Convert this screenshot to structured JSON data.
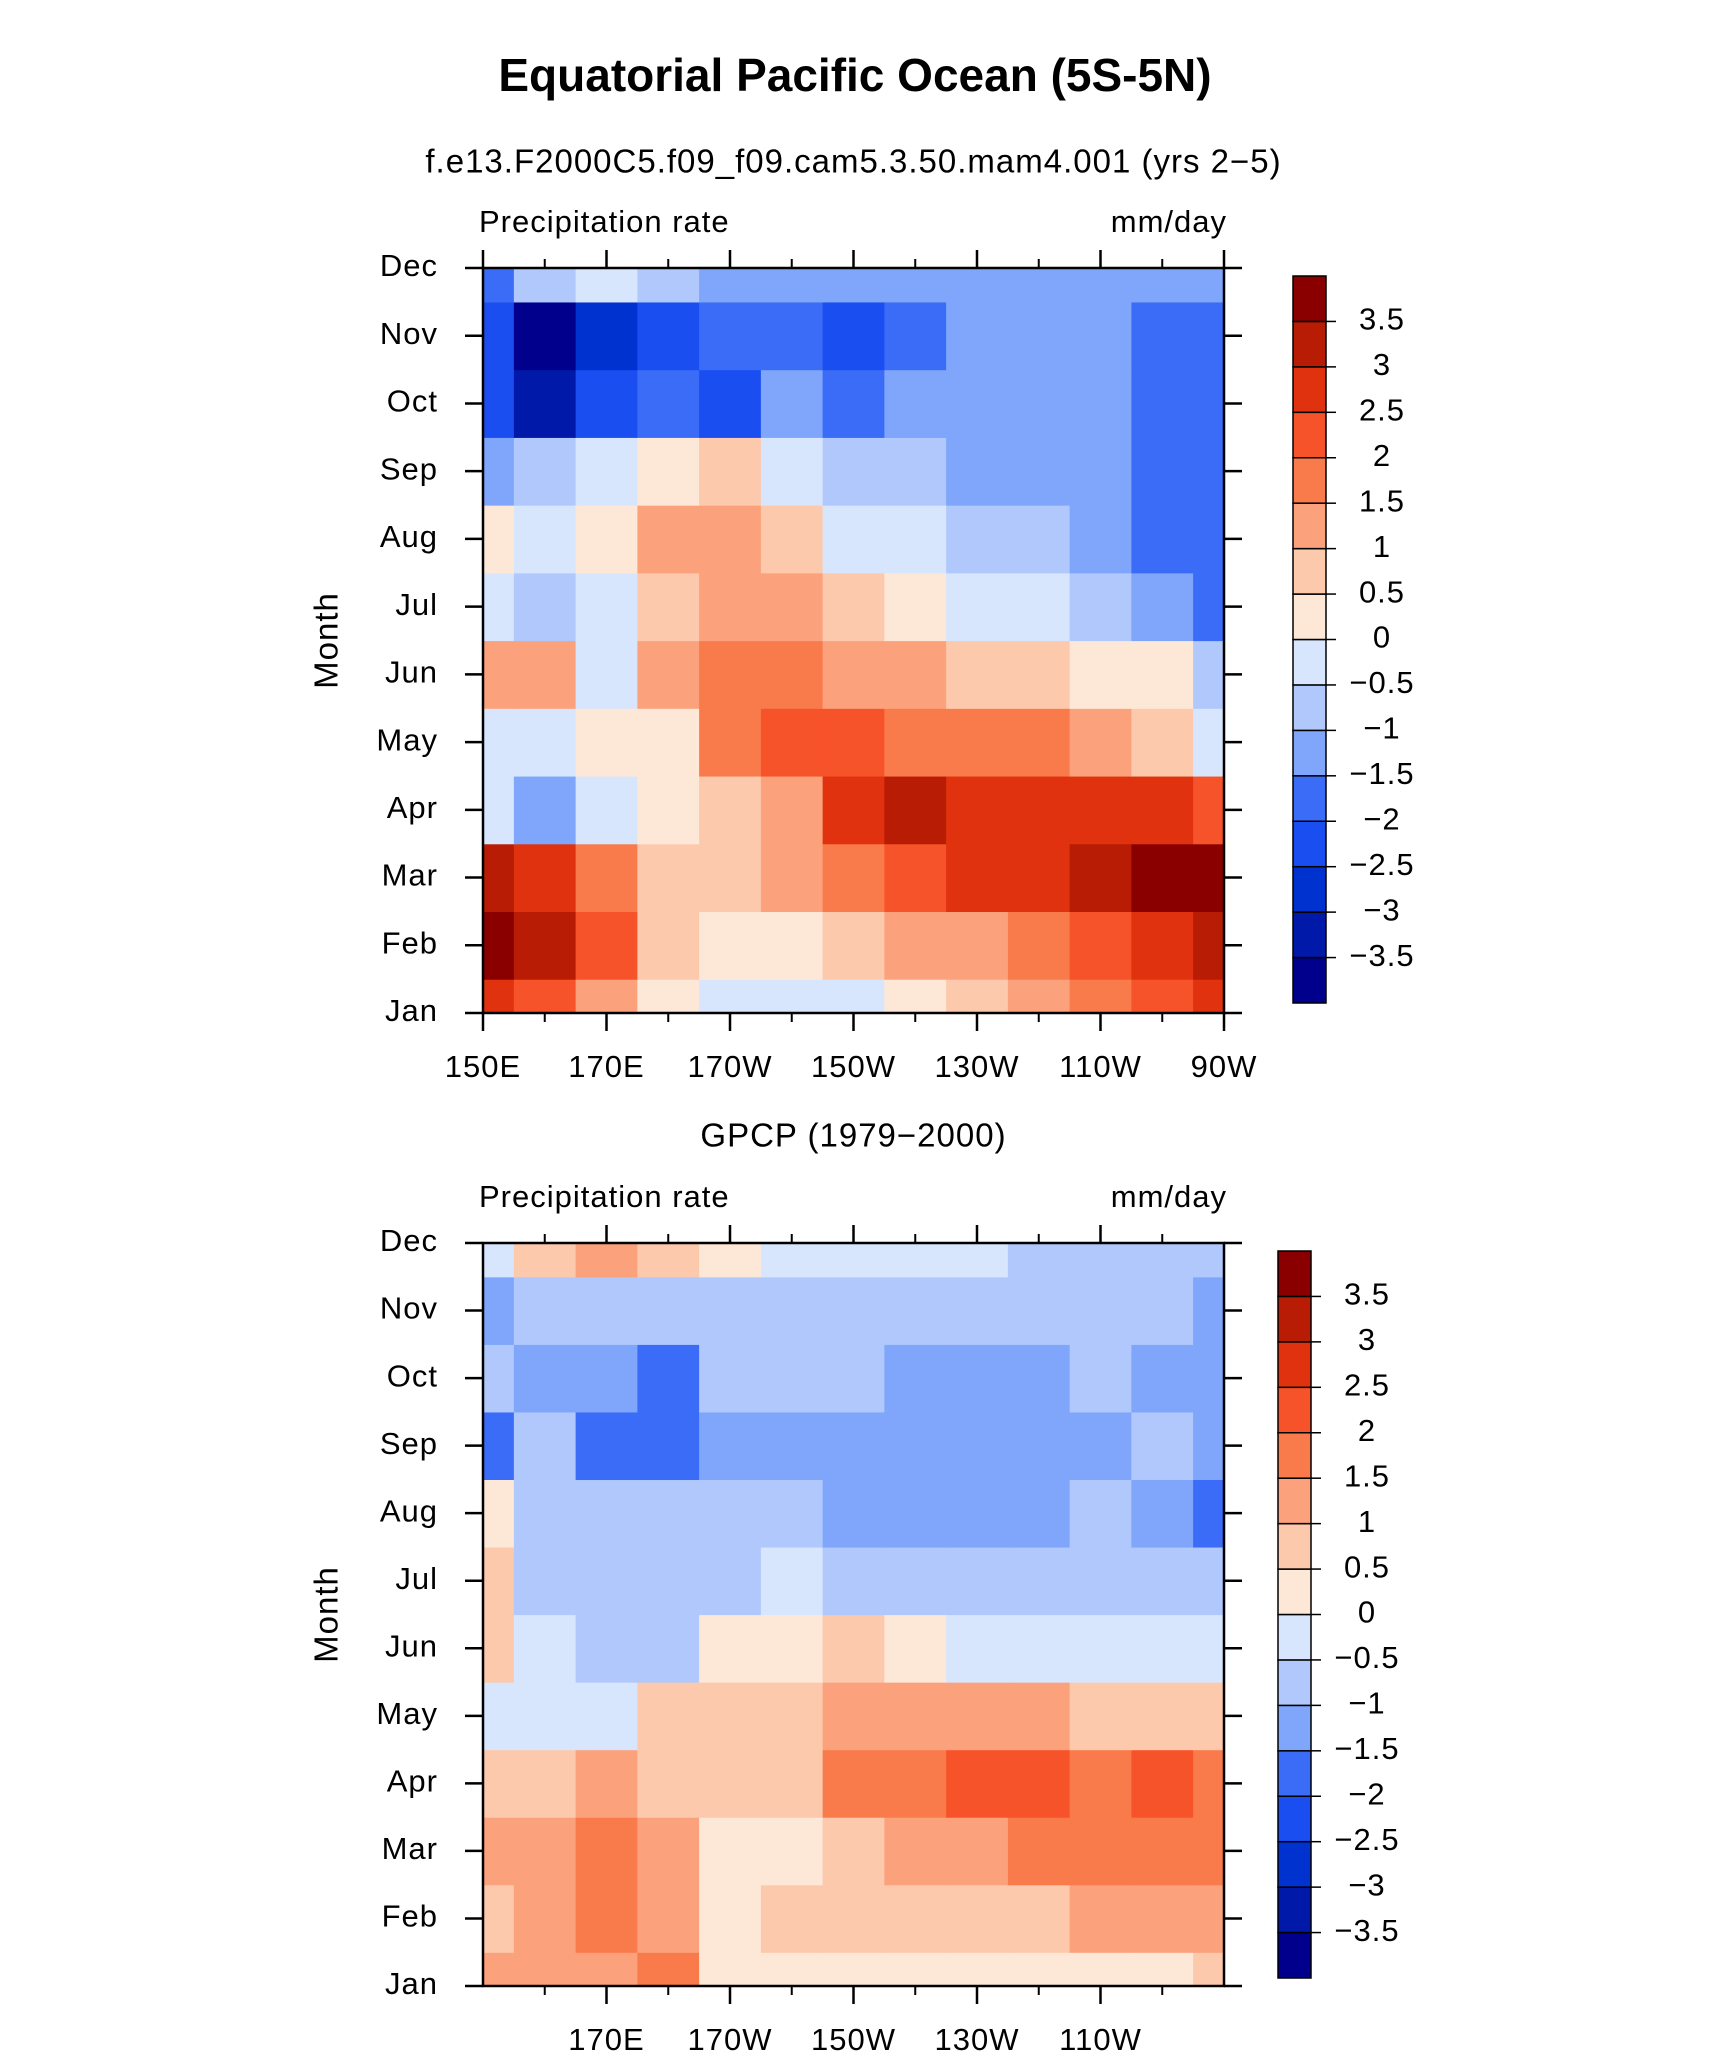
{
  "title": "Equatorial Pacific Ocean (5S-5N)",
  "chart_data": [
    {
      "type": "heatmap",
      "title": "f.e13.F2000C5.f09_f09.cam5.3.50.mam4.001 (yrs 2−5)",
      "left_label": "Precipitation rate",
      "right_label": "mm/day",
      "ylabel": "Month",
      "x": [
        150,
        160,
        170,
        180,
        190,
        200,
        210,
        220,
        230,
        240,
        250,
        260,
        270
      ],
      "xlim": [
        150,
        270
      ],
      "xticks": [
        {
          "value": 150,
          "label": "150E"
        },
        {
          "value": 170,
          "label": "170E"
        },
        {
          "value": 190,
          "label": "170W"
        },
        {
          "value": 210,
          "label": "150W"
        },
        {
          "value": 230,
          "label": "130W"
        },
        {
          "value": 250,
          "label": "110W"
        },
        {
          "value": 270,
          "label": "90W"
        }
      ],
      "xminorticks": [
        160,
        180,
        200,
        220,
        240,
        260
      ],
      "ylim": [
        0,
        11
      ],
      "yticks": [
        {
          "value": 0,
          "label": "Jan"
        },
        {
          "value": 1,
          "label": "Feb"
        },
        {
          "value": 2,
          "label": "Mar"
        },
        {
          "value": 3,
          "label": "Apr"
        },
        {
          "value": 4,
          "label": "May"
        },
        {
          "value": 5,
          "label": "Jun"
        },
        {
          "value": 6,
          "label": "Jul"
        },
        {
          "value": 7,
          "label": "Aug"
        },
        {
          "value": 8,
          "label": "Sep"
        },
        {
          "value": 9,
          "label": "Oct"
        },
        {
          "value": 10,
          "label": "Nov"
        },
        {
          "value": 11,
          "label": "Dec"
        }
      ],
      "values": [
        [
          2.5,
          2.0,
          1.0,
          0.3,
          -0.3,
          -0.3,
          -0.2,
          0.2,
          0.7,
          1.0,
          1.5,
          2.0,
          2.5
        ],
        [
          3.7,
          3.2,
          2.0,
          0.5,
          0.2,
          0.3,
          0.6,
          1.0,
          1.3,
          1.7,
          2.2,
          2.8,
          3.3
        ],
        [
          3.0,
          2.5,
          1.7,
          0.7,
          0.7,
          1.2,
          1.7,
          2.2,
          2.5,
          2.8,
          3.0,
          3.6,
          3.8
        ],
        [
          -0.3,
          -1.2,
          -0.3,
          0.3,
          0.8,
          1.3,
          2.7,
          3.1,
          2.8,
          2.7,
          2.7,
          2.5,
          2.3
        ],
        [
          -0.4,
          -0.3,
          0.2,
          0.3,
          1.5,
          2.2,
          2.0,
          1.9,
          1.7,
          1.6,
          1.3,
          0.8,
          -0.2
        ],
        [
          1.2,
          1.0,
          -0.2,
          1.0,
          1.5,
          1.6,
          1.4,
          1.0,
          0.7,
          0.5,
          0.2,
          0.1,
          -0.6
        ],
        [
          -0.5,
          -0.7,
          -0.4,
          0.5,
          1.2,
          1.1,
          0.5,
          0.1,
          -0.2,
          -0.4,
          -0.7,
          -1.2,
          -1.6
        ],
        [
          0.1,
          -0.3,
          0.2,
          1.0,
          1.3,
          0.5,
          -0.2,
          -0.5,
          -0.7,
          -0.9,
          -1.2,
          -1.7,
          -1.9
        ],
        [
          -1.3,
          -0.7,
          -0.3,
          0.3,
          0.6,
          -0.3,
          -0.8,
          -1.0,
          -1.1,
          -1.2,
          -1.4,
          -1.8,
          -2.0
        ],
        [
          -2.2,
          -3.2,
          -2.3,
          -2.0,
          -2.2,
          -1.5,
          -1.7,
          -1.2,
          -1.2,
          -1.2,
          -1.3,
          -1.7,
          -2.0
        ],
        [
          -2.5,
          -3.6,
          -2.6,
          -2.2,
          -2.0,
          -1.8,
          -2.1,
          -1.7,
          -1.2,
          -1.2,
          -1.3,
          -1.7,
          -1.6
        ],
        [
          -1.6,
          -0.8,
          -0.4,
          -1.0,
          -1.2,
          -1.4,
          -1.3,
          -1.4,
          -1.2,
          -1.2,
          -1.1,
          -1.3,
          -1.4
        ]
      ],
      "levels": [
        {
          "value": -3.5,
          "label": "−3.5"
        },
        {
          "value": -3,
          "label": "−3"
        },
        {
          "value": -2.5,
          "label": "−2.5"
        },
        {
          "value": -2,
          "label": "−2"
        },
        {
          "value": -1.5,
          "label": "−1.5"
        },
        {
          "value": -1,
          "label": "−1"
        },
        {
          "value": -0.5,
          "label": "−0.5"
        },
        0,
        0.5,
        1,
        1.5,
        2,
        2.5,
        3,
        3.5
      ],
      "colors": [
        "#00008c",
        "#0019a8",
        "#0032d0",
        "#1a4ef0",
        "#3a6cf7",
        "#7fa6fa",
        "#b0c8fb",
        "#d8e6fd",
        "#fde8d8",
        "#fcc9ad",
        "#fba27c",
        "#f97b4c",
        "#f7532a",
        "#e0320e",
        "#b81c04",
        "#8a0000"
      ]
    },
    {
      "type": "heatmap",
      "title": "GPCP (1979−2000)",
      "left_label": "Precipitation rate",
      "right_label": "mm/day",
      "ylabel": "Month",
      "x": [
        150,
        160,
        170,
        180,
        190,
        200,
        210,
        220,
        230,
        240,
        250,
        260,
        270
      ],
      "xlim": [
        150,
        270
      ],
      "xticks": [
        {
          "value": 170,
          "label": "170E"
        },
        {
          "value": 190,
          "label": "170W"
        },
        {
          "value": 210,
          "label": "150W"
        },
        {
          "value": 230,
          "label": "130W"
        },
        {
          "value": 250,
          "label": "110W"
        }
      ],
      "xminorticks": [
        160,
        180,
        200,
        220,
        240,
        260
      ],
      "ylim": [
        0,
        11
      ],
      "yticks": [
        {
          "value": 0,
          "label": "Jan"
        },
        {
          "value": 1,
          "label": "Feb"
        },
        {
          "value": 2,
          "label": "Mar"
        },
        {
          "value": 3,
          "label": "Apr"
        },
        {
          "value": 4,
          "label": "May"
        },
        {
          "value": 5,
          "label": "Jun"
        },
        {
          "value": 6,
          "label": "Jul"
        },
        {
          "value": 7,
          "label": "Aug"
        },
        {
          "value": 8,
          "label": "Sep"
        },
        {
          "value": 9,
          "label": "Oct"
        },
        {
          "value": 10,
          "label": "Nov"
        },
        {
          "value": 11,
          "label": "Dec"
        }
      ],
      "values": [
        [
          1.0,
          1.1,
          1.3,
          1.8,
          0.4,
          0.3,
          0.2,
          0.2,
          0.2,
          0.1,
          0.2,
          0.3,
          0.5
        ],
        [
          0.8,
          1.2,
          1.7,
          1.3,
          0.4,
          0.5,
          0.6,
          0.6,
          0.7,
          0.8,
          1.0,
          1.2,
          1.2
        ],
        [
          1.3,
          1.1,
          1.6,
          1.2,
          0.3,
          0.4,
          0.8,
          1.2,
          1.4,
          1.5,
          1.7,
          1.8,
          1.5
        ],
        [
          0.6,
          0.8,
          1.0,
          0.6,
          0.6,
          0.9,
          1.5,
          1.6,
          2.0,
          2.0,
          1.6,
          2.0,
          1.5
        ],
        [
          -0.2,
          -0.5,
          -0.3,
          0.6,
          0.7,
          0.9,
          1.2,
          1.0,
          1.0,
          1.0,
          0.9,
          0.8,
          0.7
        ],
        [
          0.6,
          -0.4,
          -0.6,
          -0.7,
          0.2,
          0.4,
          0.6,
          0.3,
          -0.2,
          -0.4,
          -0.3,
          -0.3,
          -0.2
        ],
        [
          0.6,
          -0.6,
          -0.7,
          -0.8,
          -0.6,
          -0.5,
          -0.6,
          -0.7,
          -0.8,
          -0.8,
          -0.6,
          -0.8,
          -1.0
        ],
        [
          0.2,
          -0.8,
          -0.9,
          -1.0,
          -0.9,
          -0.9,
          -1.2,
          -1.4,
          -1.5,
          -1.3,
          -1.0,
          -1.4,
          -1.6
        ],
        [
          -1.6,
          -1.0,
          -1.8,
          -1.7,
          -1.2,
          -1.1,
          -1.5,
          -1.4,
          -1.5,
          -1.4,
          -1.3,
          -1.0,
          -1.5
        ],
        [
          -1.0,
          -1.1,
          -1.4,
          -2.0,
          -1.0,
          -1.0,
          -1.0,
          -1.3,
          -1.3,
          -1.1,
          -1.0,
          -1.2,
          -1.5
        ],
        [
          -1.1,
          -0.9,
          -0.7,
          -0.8,
          -0.8,
          -0.6,
          -0.6,
          -0.6,
          -0.7,
          -0.8,
          -0.8,
          -0.9,
          -1.1
        ],
        [
          -0.1,
          0.5,
          1.3,
          0.8,
          0.1,
          -0.4,
          -0.3,
          -0.3,
          -0.3,
          -0.6,
          -0.7,
          -0.8,
          -0.7
        ]
      ],
      "levels": [
        {
          "value": -3.5,
          "label": "−3.5"
        },
        {
          "value": -3,
          "label": "−3"
        },
        {
          "value": -2.5,
          "label": "−2.5"
        },
        {
          "value": -2,
          "label": "−2"
        },
        {
          "value": -1.5,
          "label": "−1.5"
        },
        {
          "value": -1,
          "label": "−1"
        },
        {
          "value": -0.5,
          "label": "−0.5"
        },
        0,
        0.5,
        1,
        1.5,
        2,
        2.5,
        3,
        3.5
      ],
      "colors": [
        "#00008c",
        "#0019a8",
        "#0032d0",
        "#1a4ef0",
        "#3a6cf7",
        "#7fa6fa",
        "#b0c8fb",
        "#d8e6fd",
        "#fde8d8",
        "#fcc9ad",
        "#fba27c",
        "#f97b4c",
        "#f7532a",
        "#e0320e",
        "#b81c04",
        "#8a0000"
      ]
    }
  ]
}
